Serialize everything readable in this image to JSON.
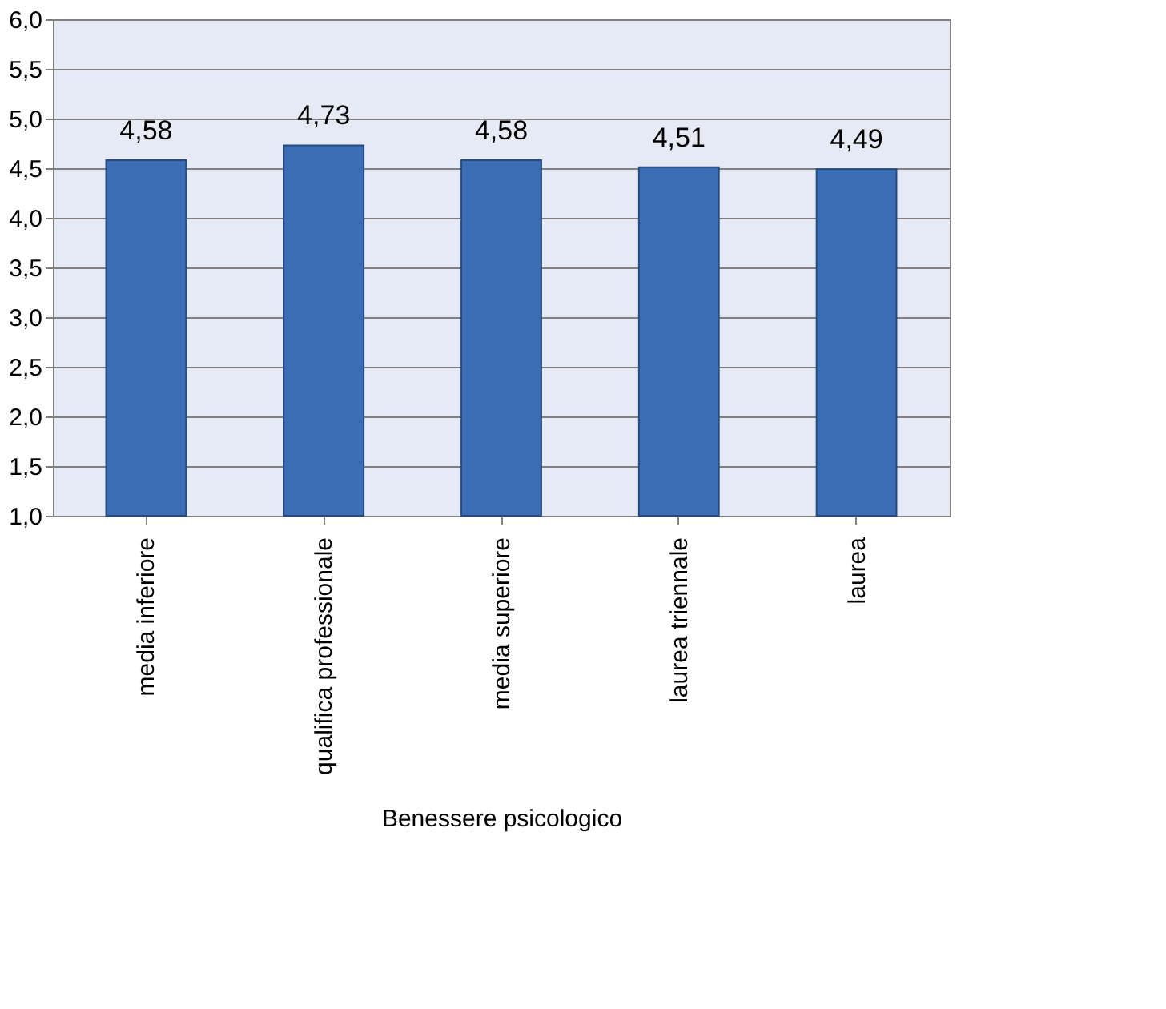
{
  "chart_data": {
    "type": "bar",
    "categories": [
      "media inferiore",
      "qualifica professionale",
      "media superiore",
      "laurea triennale",
      "laurea"
    ],
    "values": [
      4.58,
      4.73,
      4.58,
      4.51,
      4.49
    ],
    "value_labels": [
      "4,58",
      "4,73",
      "4,58",
      "4,51",
      "4,49"
    ],
    "color": "#3b6db4",
    "xlabel": "Benessere psicologico",
    "ylim": [
      1,
      6
    ],
    "yticks": [
      {
        "value": 1,
        "label": "1,0"
      },
      {
        "value": 1.5,
        "label": "1,5"
      },
      {
        "value": 2,
        "label": "2,0"
      },
      {
        "value": 2.5,
        "label": "2,5"
      },
      {
        "value": 3,
        "label": "3,0"
      },
      {
        "value": 3.5,
        "label": "3,5"
      },
      {
        "value": 4,
        "label": "4,0"
      },
      {
        "value": 4.5,
        "label": "4,5"
      },
      {
        "value": 5,
        "label": "5,0"
      },
      {
        "value": 5.5,
        "label": "5,5"
      },
      {
        "value": 6,
        "label": "6,0"
      }
    ],
    "grid": "y"
  }
}
